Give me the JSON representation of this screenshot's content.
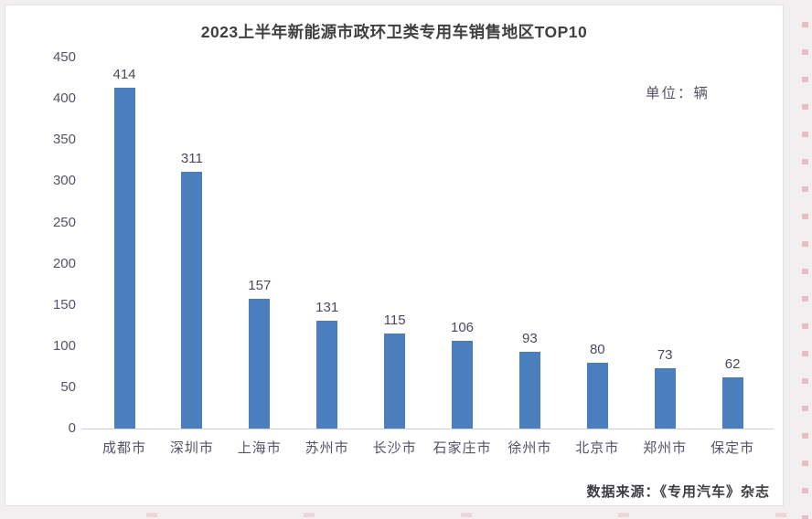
{
  "chart_data": {
    "type": "bar",
    "title": "2023上半年新能源市政环卫类专用车销售地区TOP10",
    "unit_label": "单位：辆",
    "source_note": "数据来源：《专用汽车》杂志",
    "categories": [
      "成都市",
      "深圳市",
      "上海市",
      "苏州市",
      "长沙市",
      "石家庄市",
      "徐州市",
      "北京市",
      "郑州市",
      "保定市"
    ],
    "values": [
      414,
      311,
      157,
      131,
      115,
      106,
      93,
      80,
      73,
      62
    ],
    "xlabel": "",
    "ylabel": "",
    "ylim": [
      0,
      450
    ],
    "yticks": [
      450,
      400,
      350,
      300,
      250,
      200,
      150,
      100,
      50,
      0
    ],
    "grid": false,
    "legend": false,
    "data_labels": true,
    "bar_color": "#4a7ebd",
    "background_color": "#ffffff",
    "text_color": "#53536a",
    "axis_line_color": "#cfcdd6"
  }
}
